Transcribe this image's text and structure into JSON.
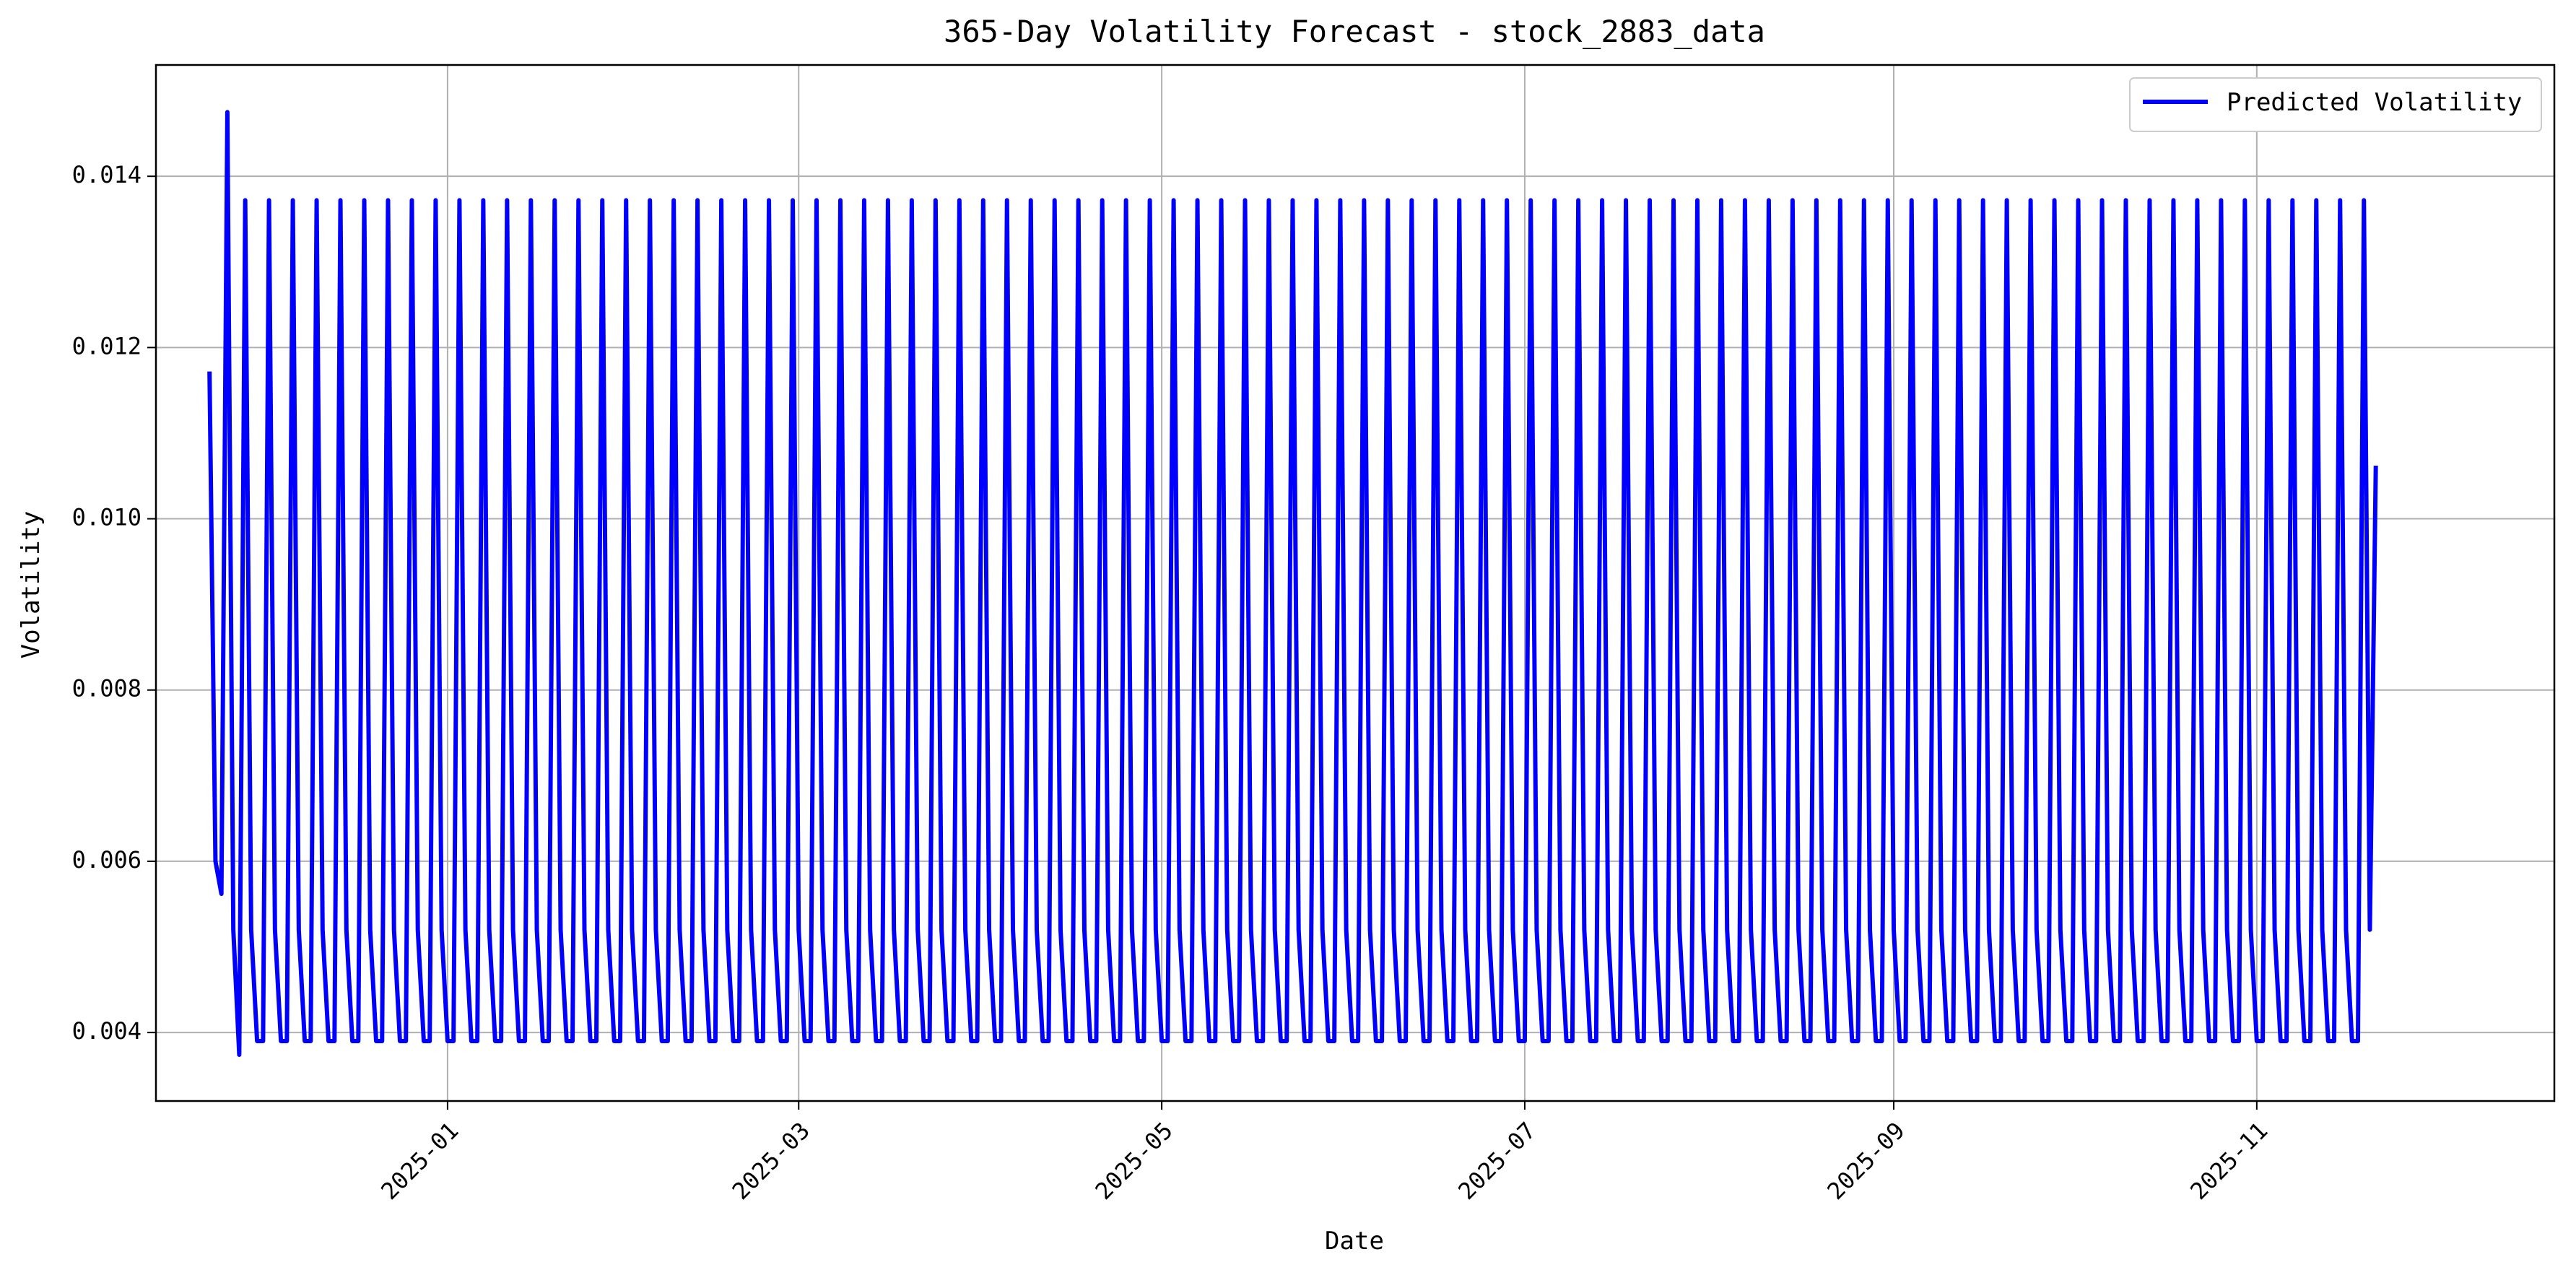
{
  "chart_data": {
    "type": "line",
    "title": "365-Day Volatility Forecast - stock_2883_data",
    "xlabel": "Date",
    "ylabel": "Volatility",
    "x_tick_labels": [
      "2025-01",
      "2025-03",
      "2025-05",
      "2025-07",
      "2025-09",
      "2025-11"
    ],
    "y_tick_labels": [
      "0.004",
      "0.006",
      "0.008",
      "0.010",
      "0.012",
      "0.014"
    ],
    "y_ticks": [
      0.004,
      0.006,
      0.008,
      0.01,
      0.012,
      0.014
    ],
    "ylim": [
      0.0032,
      0.0153
    ],
    "xlim": [
      "2024-11-13",
      "2025-12-21"
    ],
    "grid": true,
    "legend_position": "top-right",
    "colors": {
      "series": "#0000ff",
      "grid": "#b0b0b0",
      "axes": "#000000"
    },
    "series": [
      {
        "name": "Predicted Volatility",
        "start_date": "2024-11-22",
        "end_date": "2025-11-21",
        "first_cycle": [
          0.01172,
          0.006,
          0.00562,
          0.01475,
          0.0052,
          0.00374
        ],
        "repeating_cycle": [
          0.01372,
          0.0052,
          0.0039,
          0.0039
        ],
        "last_value": 0.01062
      }
    ]
  }
}
